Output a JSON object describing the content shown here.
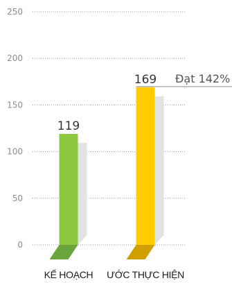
{
  "chart_data": {
    "type": "bar",
    "categories": [
      "KẾ HOẠCH",
      "ƯỚC THỰC HIỆN"
    ],
    "values": [
      119,
      169
    ],
    "value_labels": [
      "119",
      "169"
    ],
    "ylim": [
      0,
      250
    ],
    "yticks": [
      0,
      50,
      100,
      150,
      200,
      250
    ],
    "ytick_labels": [
      "0",
      "50",
      "100",
      "150",
      "200",
      "250"
    ],
    "grid": true,
    "annotation": "Đạt 142%",
    "colors": {
      "bars": [
        "#8dc63f",
        "#ffcc00"
      ],
      "bar_bases": [
        "#6aa43a",
        "#d1a000"
      ],
      "shadow": "#e3e3e3",
      "grid": "#9a9a9a",
      "axis_text": "#8c8c8c",
      "annotation_line": "#8c8c8c"
    }
  }
}
